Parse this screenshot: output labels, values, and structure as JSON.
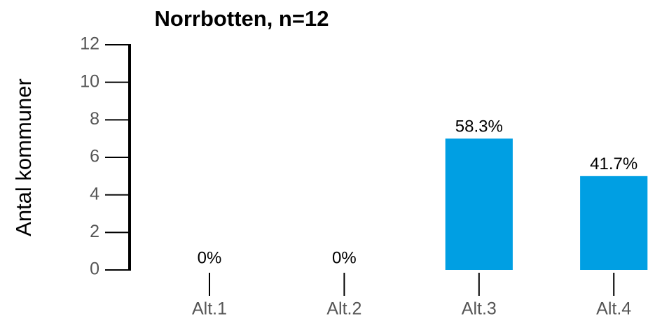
{
  "chart_data": {
    "type": "bar",
    "title": "Norrbotten, n=12",
    "y_label": "Antal kommuner",
    "categories": [
      "Alt.1",
      "Alt.2",
      "Alt.3",
      "Alt.4"
    ],
    "values": [
      0,
      0,
      7,
      5
    ],
    "value_labels": [
      "0%",
      "0%",
      "58.3%",
      "41.7%"
    ],
    "color": "#009fe3",
    "ylim": [
      0,
      12
    ],
    "yticks": [
      0,
      2,
      4,
      6,
      8,
      10,
      12
    ],
    "grid": false
  }
}
